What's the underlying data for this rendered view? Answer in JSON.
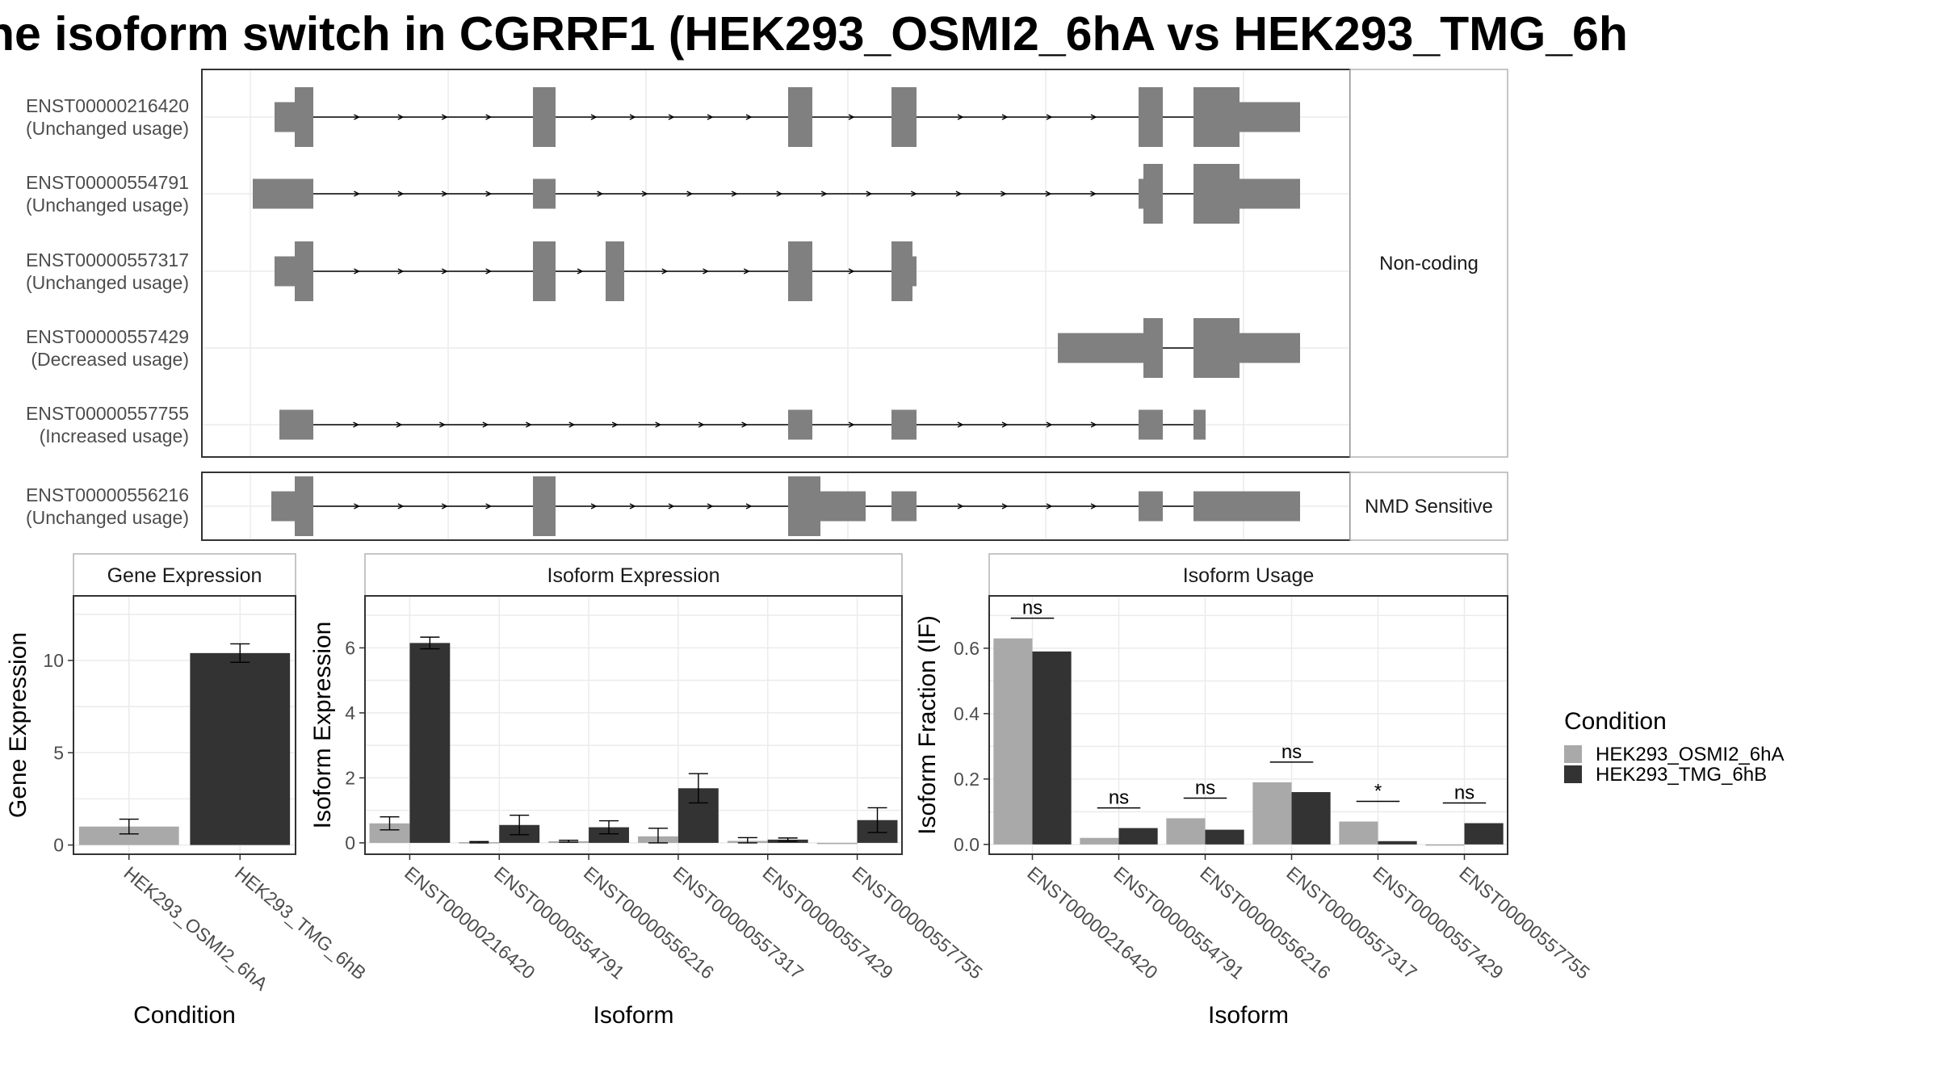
{
  "title": "ne isoform switch in CGRRF1 (HEK293_OSMI2_6hA vs HEK293_TMG_6h",
  "chart_data": [
    {
      "type": "gene-structure",
      "facets": [
        {
          "label": "Non-coding",
          "transcripts": [
            {
              "id": "ENST00000216420",
              "usage": "(Unchanged usage)"
            },
            {
              "id": "ENST00000554791",
              "usage": "(Unchanged usage)"
            },
            {
              "id": "ENST00000557317",
              "usage": "(Unchanged usage)"
            },
            {
              "id": "ENST00000557429",
              "usage": "(Decreased usage)"
            },
            {
              "id": "ENST00000557755",
              "usage": "(Increased usage)"
            }
          ]
        },
        {
          "label": "NMD Sensitive",
          "transcripts": [
            {
              "id": "ENST00000556216",
              "usage": "(Unchanged usage)"
            }
          ]
        }
      ]
    },
    {
      "type": "bar",
      "panel_title": "Gene Expression",
      "xlabel": "Condition",
      "ylabel": "Gene Expression",
      "categories": [
        "HEK293_OSMI2_6hA",
        "HEK293_TMG_6hB"
      ],
      "values": [
        1.0,
        10.4
      ],
      "errors": [
        0.4,
        0.5
      ],
      "colors": [
        "#a9a9a9",
        "#333333"
      ],
      "ylim": [
        -0.5,
        13.5
      ],
      "yticks": [
        0,
        5,
        10
      ],
      "grid": true
    },
    {
      "type": "bar",
      "panel_title": "Isoform Expression",
      "xlabel": "Isoform",
      "ylabel": "Isoform Expression",
      "categories": [
        "ENST00000216420",
        "ENST00000554791",
        "ENST00000556216",
        "ENST00000557317",
        "ENST00000557429",
        "ENST00000557755"
      ],
      "series": [
        {
          "name": "HEK293_OSMI2_6hA",
          "values": [
            0.6,
            0.02,
            0.05,
            0.2,
            0.06,
            0.0
          ],
          "errors": [
            0.2,
            0.02,
            0.03,
            0.25,
            0.1,
            0.0
          ]
        },
        {
          "name": "HEK293_TMG_6hB",
          "values": [
            6.15,
            0.55,
            0.48,
            1.68,
            0.1,
            0.7
          ],
          "errors": [
            0.18,
            0.3,
            0.2,
            0.45,
            0.05,
            0.38
          ]
        }
      ],
      "ylim": [
        -0.35,
        7.6
      ],
      "yticks": [
        0,
        2,
        4,
        6
      ],
      "grid": true
    },
    {
      "type": "bar",
      "panel_title": "Isoform Usage",
      "xlabel": "Isoform",
      "ylabel": "Isoform Fraction (IF)",
      "categories": [
        "ENST00000216420",
        "ENST00000554791",
        "ENST00000556216",
        "ENST00000557317",
        "ENST00000557429",
        "ENST00000557755"
      ],
      "series": [
        {
          "name": "HEK293_OSMI2_6hA",
          "values": [
            0.63,
            0.02,
            0.08,
            0.19,
            0.07,
            0.0
          ]
        },
        {
          "name": "HEK293_TMG_6hB",
          "values": [
            0.59,
            0.05,
            0.045,
            0.16,
            0.01,
            0.065
          ]
        }
      ],
      "significance": [
        "ns",
        "ns",
        "ns",
        "ns",
        "*",
        "ns"
      ],
      "ylim": [
        -0.03,
        0.76
      ],
      "yticks": [
        0.0,
        0.2,
        0.4,
        0.6
      ],
      "grid": true
    }
  ],
  "legend": {
    "title": "Condition",
    "placement": "right",
    "entries": [
      {
        "name": "HEK293_OSMI2_6hA",
        "color": "#a9a9a9"
      },
      {
        "name": "HEK293_TMG_6hB",
        "color": "#333333"
      }
    ]
  },
  "colors": {
    "exon": "#808080",
    "intron": "#000000",
    "grid": "#ebebeb",
    "panel_border": "#333333",
    "strip_border": "#b3b3b3",
    "axis_text": "#4d4d4d"
  }
}
